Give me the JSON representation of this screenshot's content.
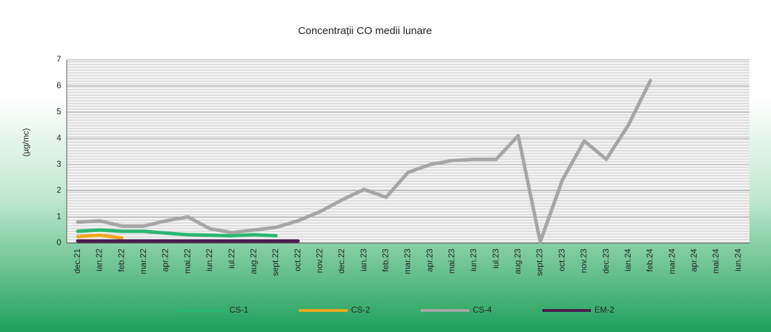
{
  "chart_data": {
    "type": "line",
    "title": "Concentrații CO medii lunare",
    "y_label": "(µg/mc)",
    "categories": [
      "dec.21",
      "ian.22",
      "feb.22",
      "mar.22",
      "apr.22",
      "mai.22",
      "iun.22",
      "iul.22",
      "aug.22",
      "sept.22",
      "oct.22",
      "nov.22",
      "dec.22",
      "ian.23",
      "feb.23",
      "mar.23",
      "apr.23",
      "mai.23",
      "iun.23",
      "iul.23",
      "aug.23",
      "sept.23",
      "oct.23",
      "nov.23",
      "dec.23",
      "ian.24",
      "feb.24",
      "mar.24",
      "apr.24",
      "mai.24",
      "iun.24"
    ],
    "series": [
      {
        "name": "CS-1",
        "color": "#2bb673",
        "values": [
          0.45,
          0.5,
          0.45,
          0.45,
          0.38,
          0.32,
          0.3,
          0.28,
          0.32,
          0.28,
          null,
          null,
          null,
          null,
          null,
          null,
          null,
          null,
          null,
          null,
          null,
          null,
          null,
          null,
          null,
          null,
          null,
          null,
          null,
          null,
          null
        ]
      },
      {
        "name": "CS-2",
        "color": "#f2a81d",
        "values": [
          0.25,
          0.3,
          0.2,
          null,
          null,
          null,
          null,
          null,
          null,
          null,
          null,
          null,
          null,
          null,
          null,
          null,
          null,
          null,
          null,
          null,
          null,
          null,
          null,
          null,
          null,
          null,
          null,
          null,
          null,
          null,
          null
        ]
      },
      {
        "name": "CS-4",
        "color": "#a6a6a6",
        "values": [
          0.8,
          0.85,
          0.65,
          0.65,
          0.85,
          1.0,
          0.55,
          0.4,
          0.5,
          0.6,
          0.85,
          1.2,
          1.65,
          2.05,
          1.75,
          2.7,
          3.0,
          3.15,
          3.2,
          3.2,
          4.1,
          0.05,
          2.4,
          3.9,
          3.2,
          4.5,
          6.2,
          null,
          null,
          null,
          null
        ]
      },
      {
        "name": "EM-2",
        "color": "#4b1a4f",
        "values": [
          0.08,
          0.08,
          0.08,
          0.08,
          0.08,
          0.08,
          0.08,
          0.08,
          0.08,
          0.08,
          0.08,
          null,
          null,
          null,
          null,
          null,
          null,
          null,
          null,
          null,
          null,
          null,
          null,
          null,
          null,
          null,
          null,
          null,
          null,
          null,
          null
        ]
      }
    ],
    "ylim": [
      0,
      7
    ],
    "yticks": [
      0,
      1,
      2,
      3,
      4,
      5,
      6,
      7
    ],
    "grid": true
  }
}
